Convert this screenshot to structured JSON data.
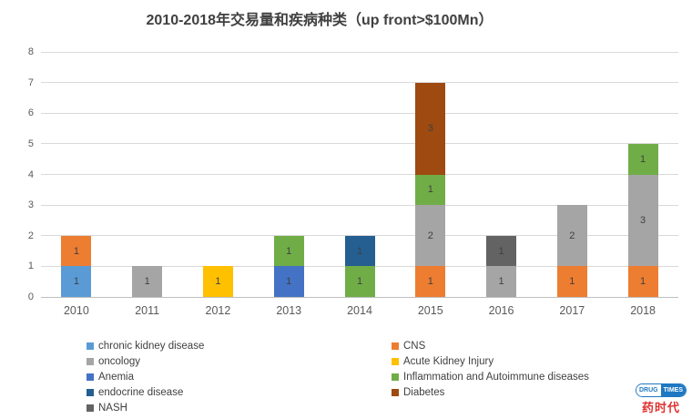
{
  "chart_data": {
    "type": "bar",
    "stacked": true,
    "title": "2010-2018年交易量和疾病种类（up front>$100Mn）",
    "categories": [
      "2010",
      "2011",
      "2012",
      "2013",
      "2014",
      "2015",
      "2016",
      "2017",
      "2018"
    ],
    "xlabel": "",
    "ylabel": "",
    "ylim": [
      0,
      8
    ],
    "yticks": [
      0,
      1,
      2,
      3,
      4,
      5,
      6,
      7,
      8
    ],
    "grid": true,
    "legend_position": "bottom",
    "series_colors": {
      "chronic kidney disease": "#5B9BD5",
      "oncology": "#A5A5A5",
      "Anemia": "#4472C4",
      "endocrine disease": "#255E91",
      "NASH": "#636363",
      "CNS": "#ED7D31",
      "Acute Kidney Injury": "#FFC000",
      "Inflammation and Autoimmune diseases": "#70AD47",
      "Diabetes": "#9E4A10"
    },
    "bars": [
      {
        "category": "2010",
        "segments": [
          {
            "series": "chronic kidney disease",
            "value": 1
          },
          {
            "series": "CNS",
            "value": 1
          }
        ]
      },
      {
        "category": "2011",
        "segments": [
          {
            "series": "oncology",
            "value": 1
          }
        ]
      },
      {
        "category": "2012",
        "segments": [
          {
            "series": "Acute Kidney Injury",
            "value": 1
          }
        ]
      },
      {
        "category": "2013",
        "segments": [
          {
            "series": "Anemia",
            "value": 1
          },
          {
            "series": "Inflammation and Autoimmune diseases",
            "value": 1
          }
        ]
      },
      {
        "category": "2014",
        "segments": [
          {
            "series": "Inflammation and Autoimmune diseases",
            "value": 1
          },
          {
            "series": "endocrine disease",
            "value": 1
          }
        ]
      },
      {
        "category": "2015",
        "segments": [
          {
            "series": "CNS",
            "value": 1
          },
          {
            "series": "oncology",
            "value": 2
          },
          {
            "series": "Inflammation and Autoimmune diseases",
            "value": 1
          },
          {
            "series": "Diabetes",
            "value": 3
          }
        ]
      },
      {
        "category": "2016",
        "segments": [
          {
            "series": "oncology",
            "value": 1
          },
          {
            "series": "NASH",
            "value": 1
          }
        ]
      },
      {
        "category": "2017",
        "segments": [
          {
            "series": "CNS",
            "value": 1
          },
          {
            "series": "oncology",
            "value": 2
          }
        ]
      },
      {
        "category": "2018",
        "segments": [
          {
            "series": "CNS",
            "value": 1
          },
          {
            "series": "oncology",
            "value": 3
          },
          {
            "series": "Inflammation and Autoimmune diseases",
            "value": 1
          }
        ]
      }
    ],
    "legend_columns": [
      [
        "chronic kidney disease",
        "oncology",
        "Anemia",
        "endocrine disease",
        "NASH"
      ],
      [
        "CNS",
        "Acute Kidney Injury",
        "Inflammation and Autoimmune diseases",
        "Diabetes"
      ]
    ]
  },
  "logo": {
    "pill_left": "DRUG",
    "pill_right": "TIMES",
    "caption": "药时代"
  }
}
